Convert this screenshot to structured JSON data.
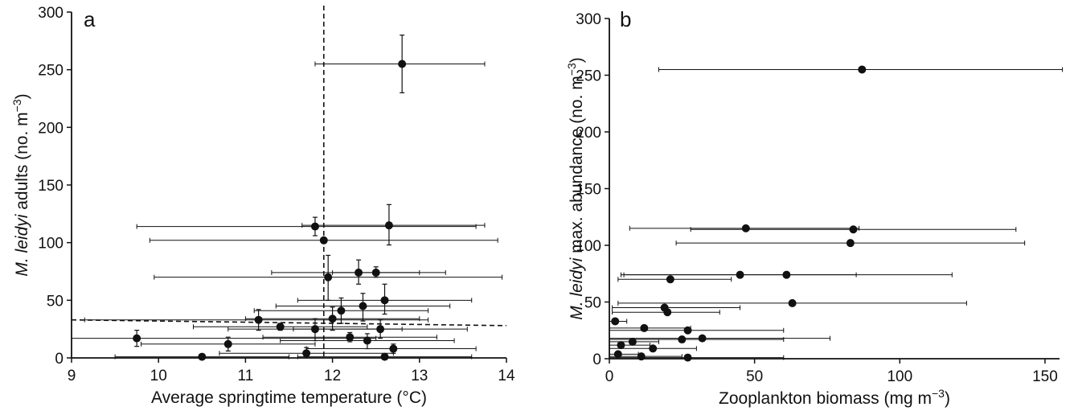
{
  "figure": {
    "panel_a_letter": "a",
    "panel_b_letter": "b"
  },
  "chart_data": [
    {
      "type": "scatter",
      "panel": "a",
      "xlabel": "Average springtime temperature (°C)",
      "ylabel": {
        "italic": "M. leidyi",
        "rest": " adults (no. m",
        "sup": "−3",
        "close": ")"
      },
      "xlim": [
        9,
        14
      ],
      "ylim": [
        0,
        300
      ],
      "x_ticks": [
        9,
        10,
        11,
        12,
        13,
        14
      ],
      "y_ticks": [
        0,
        50,
        100,
        150,
        200,
        250,
        300
      ],
      "grid": false,
      "error_bars": "horizontal and vertical",
      "reference_lines": [
        {
          "kind": "vertical",
          "style": "dashed",
          "x": 11.9
        },
        {
          "kind": "trend",
          "style": "dashed",
          "from": [
            9,
            33
          ],
          "to": [
            14,
            28
          ]
        }
      ],
      "points": [
        {
          "x": 12.8,
          "y": 255,
          "xerr": [
            11.8,
            13.75
          ],
          "yerr": [
            230,
            280
          ]
        },
        {
          "x": 11.8,
          "y": 114,
          "xerr": [
            9.75,
            13.65
          ],
          "yerr": [
            106,
            122
          ]
        },
        {
          "x": 12.65,
          "y": 115,
          "xerr": [
            11.65,
            13.75
          ],
          "yerr": [
            98,
            133
          ]
        },
        {
          "x": 11.9,
          "y": 102,
          "xerr": [
            9.9,
            13.9
          ],
          "yerr": [
            100,
            104
          ]
        },
        {
          "x": 11.95,
          "y": 70,
          "xerr": [
            9.95,
            13.95
          ],
          "yerr": [
            50,
            89
          ]
        },
        {
          "x": 12.3,
          "y": 74,
          "xerr": [
            11.3,
            13.3
          ],
          "yerr": [
            64,
            85
          ]
        },
        {
          "x": 12.5,
          "y": 74,
          "xerr": [
            12.0,
            13.0
          ],
          "yerr": [
            70,
            79
          ]
        },
        {
          "x": 12.6,
          "y": 50,
          "xerr": [
            11.6,
            13.6
          ],
          "yerr": [
            38,
            64
          ]
        },
        {
          "x": 12.35,
          "y": 45,
          "xerr": [
            11.35,
            13.35
          ],
          "yerr": [
            32,
            56
          ]
        },
        {
          "x": 12.1,
          "y": 41,
          "xerr": [
            11.1,
            13.1
          ],
          "yerr": [
            30,
            52
          ]
        },
        {
          "x": 11.15,
          "y": 33,
          "xerr": [
            9.15,
            13.1
          ],
          "yerr": [
            24,
            42
          ]
        },
        {
          "x": 12.0,
          "y": 34,
          "xerr": [
            11.0,
            13.0
          ],
          "yerr": [
            24,
            44
          ]
        },
        {
          "x": 11.4,
          "y": 27,
          "xerr": [
            10.4,
            12.4
          ],
          "yerr": [
            24,
            30
          ]
        },
        {
          "x": 11.8,
          "y": 25,
          "xerr": [
            10.8,
            12.8
          ],
          "yerr": [
            15,
            34
          ]
        },
        {
          "x": 12.55,
          "y": 25,
          "xerr": [
            11.55,
            13.55
          ],
          "yerr": [
            17,
            33
          ]
        },
        {
          "x": 12.2,
          "y": 18,
          "xerr": [
            11.2,
            13.2
          ],
          "yerr": [
            14,
            22
          ]
        },
        {
          "x": 9.75,
          "y": 17,
          "xerr": [
            9.0,
            12.5
          ],
          "yerr": [
            10,
            24
          ]
        },
        {
          "x": 12.4,
          "y": 15,
          "xerr": [
            11.4,
            13.4
          ],
          "yerr": [
            8,
            21
          ]
        },
        {
          "x": 10.8,
          "y": 12,
          "xerr": [
            9.8,
            11.8
          ],
          "yerr": [
            6,
            18
          ]
        },
        {
          "x": 12.7,
          "y": 8,
          "xerr": [
            11.7,
            13.65
          ],
          "yerr": [
            4,
            12
          ]
        },
        {
          "x": 11.7,
          "y": 4,
          "xerr": [
            10.7,
            12.7
          ],
          "yerr": [
            0,
            9
          ]
        },
        {
          "x": 10.5,
          "y": 1,
          "xerr": [
            9.5,
            11.5
          ],
          "yerr": [
            0,
            2
          ]
        },
        {
          "x": 12.6,
          "y": 1,
          "xerr": [
            11.6,
            13.6
          ],
          "yerr": [
            0,
            2
          ]
        }
      ]
    },
    {
      "type": "scatter",
      "panel": "b",
      "xlabel": {
        "text": "Zooplankton biomass (mg m",
        "sup": "−3",
        "close": ")"
      },
      "ylabel": {
        "italic": "M. leidyi",
        "rest": " max. abundance (no. m",
        "sup": "−3",
        "close": ")"
      },
      "xlim": [
        0,
        155
      ],
      "ylim": [
        0,
        300
      ],
      "x_ticks": [
        0,
        50,
        100,
        150
      ],
      "y_ticks": [
        0,
        50,
        100,
        150,
        200,
        250,
        300
      ],
      "grid": false,
      "error_bars": "horizontal",
      "points": [
        {
          "x": 87,
          "y": 255,
          "xerr": [
            17,
            156
          ]
        },
        {
          "x": 47,
          "y": 115,
          "xerr": [
            7,
            86
          ]
        },
        {
          "x": 84,
          "y": 114,
          "xerr": [
            28,
            140
          ]
        },
        {
          "x": 83,
          "y": 102,
          "xerr": [
            23,
            143
          ]
        },
        {
          "x": 45,
          "y": 74,
          "xerr": [
            5,
            85
          ]
        },
        {
          "x": 61,
          "y": 74,
          "xerr": [
            4,
            118
          ]
        },
        {
          "x": 21,
          "y": 70,
          "xerr": [
            3,
            42
          ]
        },
        {
          "x": 63,
          "y": 49,
          "xerr": [
            3,
            123
          ]
        },
        {
          "x": 19,
          "y": 45,
          "xerr": [
            1,
            45
          ]
        },
        {
          "x": 20,
          "y": 41,
          "xerr": [
            1,
            38
          ]
        },
        {
          "x": 2,
          "y": 33,
          "xerr": [
            0,
            6
          ]
        },
        {
          "x": 12,
          "y": 27,
          "xerr": [
            0,
            28
          ]
        },
        {
          "x": 27,
          "y": 25,
          "xerr": [
            0,
            60
          ]
        },
        {
          "x": 32,
          "y": 18,
          "xerr": [
            0,
            76
          ]
        },
        {
          "x": 25,
          "y": 17,
          "xerr": [
            0,
            60
          ]
        },
        {
          "x": 8,
          "y": 15,
          "xerr": [
            0,
            17
          ]
        },
        {
          "x": 4,
          "y": 12,
          "xerr": [
            0,
            14
          ]
        },
        {
          "x": 15,
          "y": 9,
          "xerr": [
            0,
            30
          ]
        },
        {
          "x": 3,
          "y": 4,
          "xerr": [
            0,
            10
          ]
        },
        {
          "x": 11,
          "y": 2,
          "xerr": [
            0,
            25
          ]
        },
        {
          "x": 27,
          "y": 1,
          "xerr": [
            0,
            60
          ]
        }
      ]
    }
  ]
}
